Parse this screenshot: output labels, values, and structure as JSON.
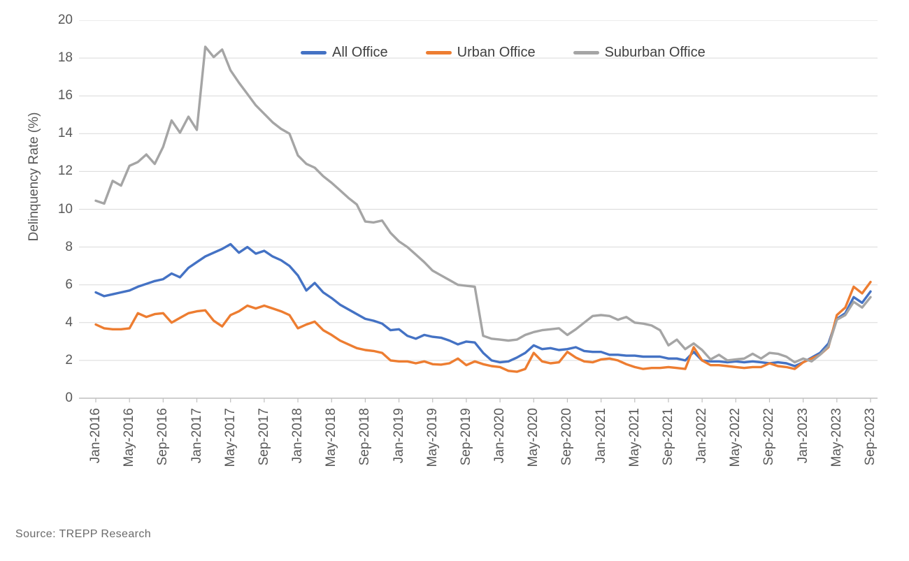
{
  "source_note": "Source: TREPP Research",
  "chart_data": {
    "type": "line",
    "title": "",
    "xlabel": "",
    "ylabel": "Delinquency Rate (%)",
    "ylim": [
      0,
      20
    ],
    "ytick_step": 2,
    "grid": "horizontal",
    "legend_position": "top-center",
    "x_frequency": "monthly",
    "x_start": "Jan-2016",
    "x_end": "Sep-2023",
    "x_tick_every_points": 4,
    "x_tick_labels": [
      "Jan-2016",
      "May-2016",
      "Sep-2016",
      "Jan-2017",
      "May-2017",
      "Sep-2017",
      "Jan-2018",
      "May-2018",
      "Sep-2018",
      "Jan-2019",
      "May-2019",
      "Sep-2019",
      "Jan-2020",
      "May-2020",
      "Sep-2020",
      "Jan-2021",
      "May-2021",
      "Sep-2021",
      "Jan-2022",
      "May-2022",
      "Sep-2022",
      "Jan-2023",
      "May-2023",
      "Sep-2023"
    ],
    "axis_colors": {
      "grid": "#d9d9d9",
      "axis": "#bfbfbf",
      "tick_text": "#595959"
    },
    "series": [
      {
        "name": "All Office",
        "color": "#4472C4",
        "values": [
          5.6,
          5.4,
          5.5,
          5.6,
          5.7,
          5.9,
          6.05,
          6.2,
          6.3,
          6.6,
          6.4,
          6.9,
          7.2,
          7.5,
          7.7,
          7.9,
          8.15,
          7.7,
          8.0,
          7.65,
          7.8,
          7.5,
          7.3,
          7.0,
          6.5,
          5.7,
          6.1,
          5.6,
          5.3,
          4.95,
          4.7,
          4.45,
          4.2,
          4.1,
          3.95,
          3.6,
          3.65,
          3.3,
          3.15,
          3.35,
          3.25,
          3.2,
          3.05,
          2.85,
          3.0,
          2.95,
          2.4,
          2.0,
          1.9,
          1.95,
          2.15,
          2.4,
          2.8,
          2.6,
          2.65,
          2.55,
          2.6,
          2.7,
          2.5,
          2.45,
          2.45,
          2.3,
          2.3,
          2.25,
          2.25,
          2.2,
          2.2,
          2.2,
          2.1,
          2.1,
          2.0,
          2.45,
          2.0,
          1.95,
          1.95,
          1.9,
          1.95,
          1.9,
          1.95,
          1.9,
          1.85,
          1.9,
          1.85,
          1.7,
          1.9,
          2.15,
          2.4,
          2.9,
          4.2,
          4.5,
          5.35,
          5.05,
          5.65
        ]
      },
      {
        "name": "Urban Office",
        "color": "#ED7D31",
        "values": [
          3.9,
          3.7,
          3.65,
          3.65,
          3.7,
          4.5,
          4.3,
          4.45,
          4.5,
          4.0,
          4.25,
          4.5,
          4.6,
          4.65,
          4.1,
          3.8,
          4.4,
          4.6,
          4.9,
          4.75,
          4.9,
          4.75,
          4.6,
          4.4,
          3.7,
          3.9,
          4.05,
          3.6,
          3.35,
          3.05,
          2.85,
          2.65,
          2.55,
          2.5,
          2.4,
          2.0,
          1.95,
          1.95,
          1.85,
          1.95,
          1.8,
          1.78,
          1.85,
          2.1,
          1.75,
          1.95,
          1.8,
          1.7,
          1.65,
          1.45,
          1.4,
          1.55,
          2.4,
          1.95,
          1.85,
          1.9,
          2.45,
          2.15,
          1.95,
          1.9,
          2.05,
          2.1,
          2.0,
          1.8,
          1.65,
          1.55,
          1.6,
          1.6,
          1.65,
          1.6,
          1.55,
          2.7,
          2.0,
          1.75,
          1.75,
          1.7,
          1.65,
          1.6,
          1.65,
          1.65,
          1.85,
          1.7,
          1.65,
          1.55,
          1.9,
          2.1,
          2.3,
          2.7,
          4.4,
          4.8,
          5.9,
          5.55,
          6.15
        ]
      },
      {
        "name": "Suburban Office",
        "color": "#A5A5A5",
        "values": [
          10.45,
          10.3,
          11.5,
          11.25,
          12.3,
          12.5,
          12.9,
          12.4,
          13.3,
          14.7,
          14.05,
          14.9,
          14.2,
          18.6,
          18.05,
          18.45,
          17.35,
          16.7,
          16.1,
          15.5,
          15.05,
          14.6,
          14.25,
          14.0,
          12.85,
          12.4,
          12.2,
          11.75,
          11.4,
          11.0,
          10.6,
          10.25,
          9.35,
          9.3,
          9.4,
          8.75,
          8.3,
          8.0,
          7.6,
          7.2,
          6.75,
          6.5,
          6.25,
          6.0,
          5.95,
          5.9,
          3.3,
          3.15,
          3.1,
          3.05,
          3.1,
          3.35,
          3.5,
          3.6,
          3.65,
          3.7,
          3.35,
          3.65,
          4.0,
          4.35,
          4.4,
          4.35,
          4.15,
          4.3,
          4.0,
          3.95,
          3.85,
          3.6,
          2.8,
          3.1,
          2.6,
          2.9,
          2.55,
          2.05,
          2.3,
          2.0,
          2.05,
          2.1,
          2.35,
          2.1,
          2.4,
          2.35,
          2.2,
          1.9,
          2.1,
          1.95,
          2.3,
          2.75,
          4.15,
          4.4,
          5.1,
          4.8,
          5.35
        ]
      }
    ]
  }
}
